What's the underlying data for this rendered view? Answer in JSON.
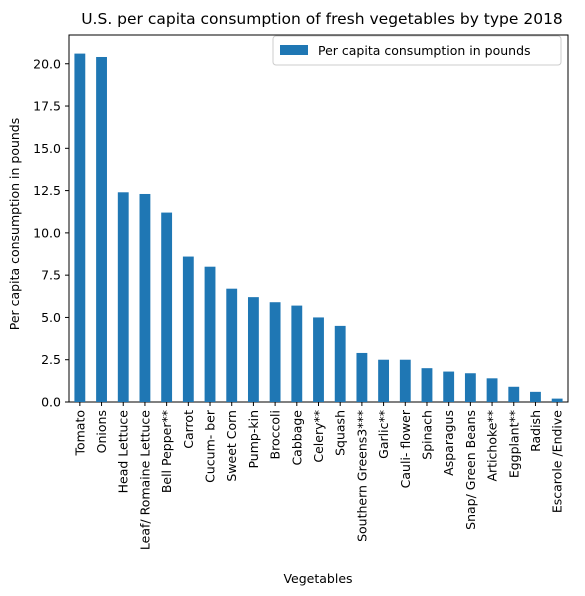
{
  "chart_data": {
    "type": "bar",
    "title": "U.S. per capita consumption of fresh vegetables by type 2018",
    "xlabel": "Vegetables",
    "ylabel": "Per capita consumption in pounds",
    "ylim": [
      0,
      21.7
    ],
    "yticks": [
      "0.0",
      "2.5",
      "5.0",
      "7.5",
      "10.0",
      "12.5",
      "15.0",
      "17.5",
      "20.0"
    ],
    "legend_position": "top-right",
    "grid": false,
    "bar_color": "#1f77b4",
    "categories": [
      "Tomato",
      "Onions",
      "Head Lettuce",
      "Leaf/ Romaine Lettuce",
      "Bell Pepper**",
      "Carrot",
      "Cucum- ber",
      "Sweet Corn",
      "Pump-kin",
      "Broccoli",
      "Cabbage",
      "Celery**",
      "Squash",
      "Southern Greens3***",
      "Garlic**",
      "Cauli- flower",
      "Spinach",
      "Asparagus",
      "Snap/ Green Beans",
      "Artichoke**",
      "Eggplant**",
      "Radish",
      "Escarole /Endive"
    ],
    "series": [
      {
        "name": "Per capita consumption in pounds",
        "values": [
          20.6,
          20.4,
          12.4,
          12.3,
          11.2,
          8.6,
          8.0,
          6.7,
          6.2,
          5.9,
          5.7,
          5.0,
          4.5,
          2.9,
          2.5,
          2.5,
          2.0,
          1.8,
          1.7,
          1.4,
          0.9,
          0.6,
          0.2
        ]
      }
    ]
  }
}
